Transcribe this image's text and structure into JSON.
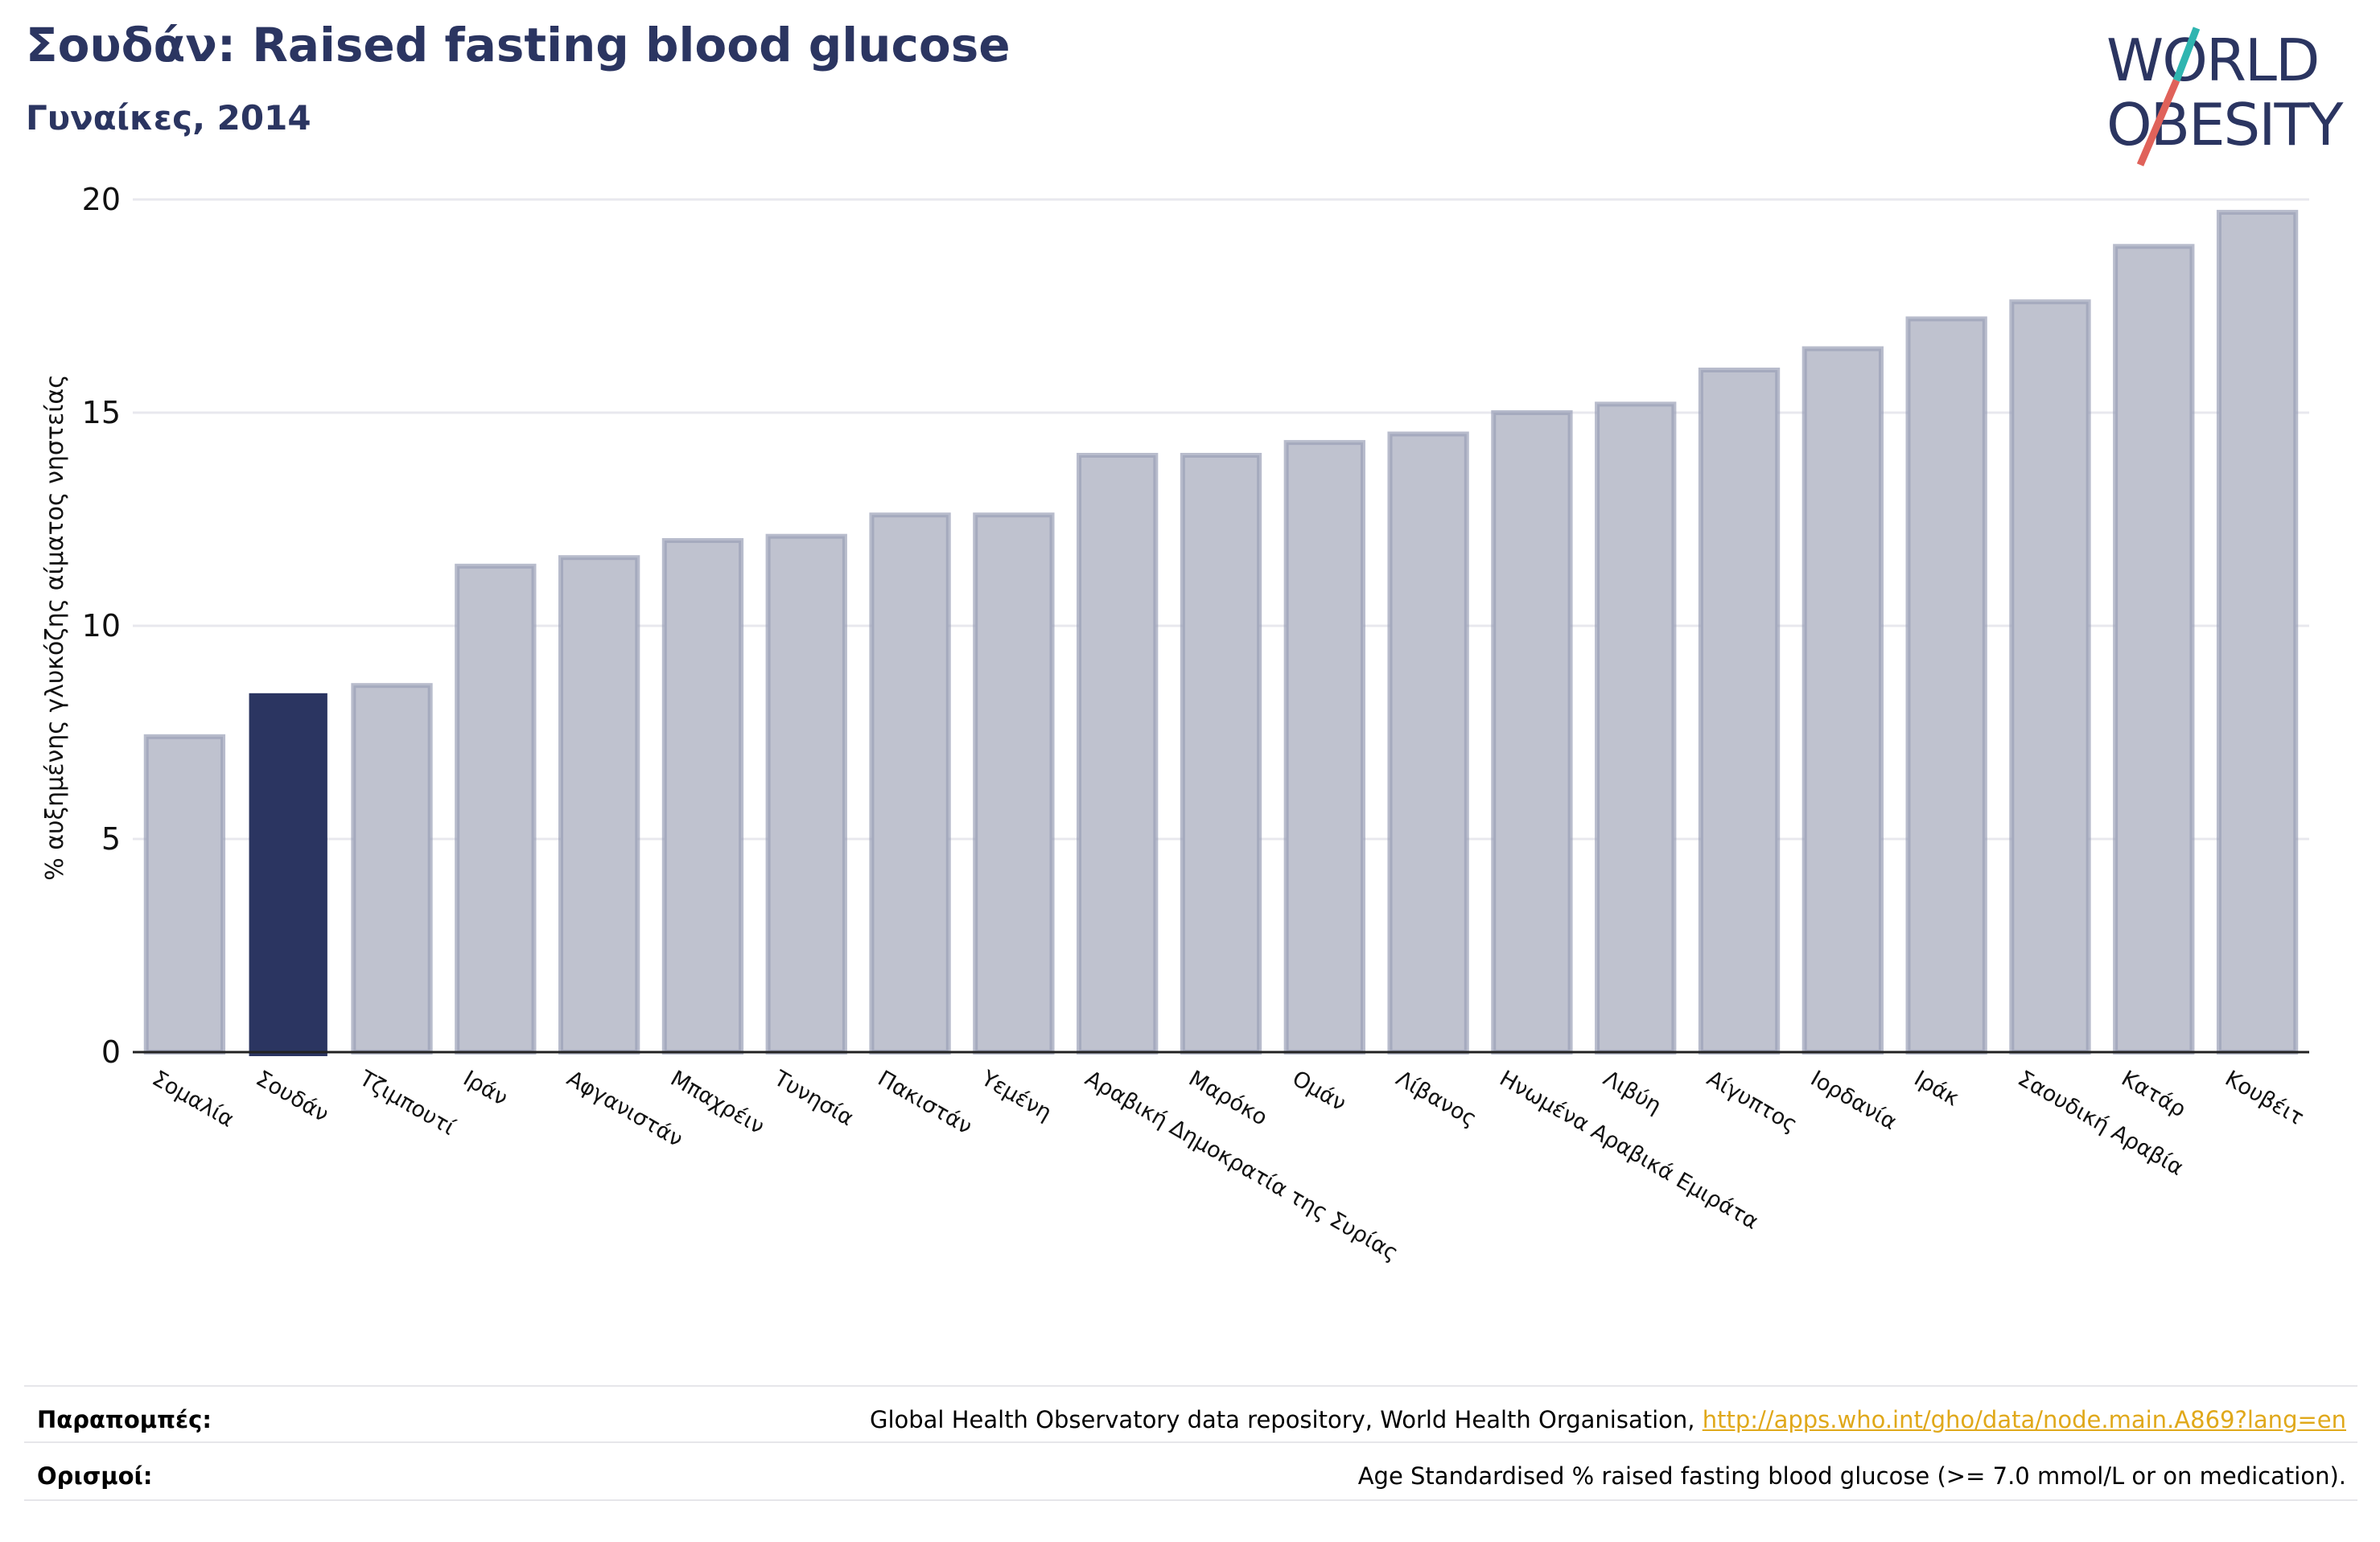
{
  "title": "Σουδάν: Raised fasting blood glucose",
  "subtitle": "Γυναίκες, 2014",
  "logo": {
    "line1": "WORLD",
    "line2": "OBESITY"
  },
  "colors": {
    "highlight": "#2b3561",
    "bar_fill": "#bfc2cf",
    "bar_stroke": "#9a9fb6",
    "accent_teal": "#2fb5b0",
    "accent_red": "#e0625a",
    "link": "#e0a81a"
  },
  "chart_data": {
    "type": "bar",
    "title": "Σουδάν: Raised fasting blood glucose",
    "subtitle": "Γυναίκες, 2014",
    "xlabel": "",
    "ylabel": "% αυξημένης γλυκόζης αίματος νηστείας",
    "ylim": [
      0,
      20
    ],
    "yticks": [
      0,
      5,
      10,
      15,
      20
    ],
    "grid": true,
    "highlight": "Σουδάν",
    "categories": [
      "Σομαλία",
      "Σουδάν",
      "Τζιμπουτί",
      "Ιράν",
      "Αφγανιστάν",
      "Μπαχρέιν",
      "Τυνησία",
      "Πακιστάν",
      "Υεμένη",
      "Αραβική Δημοκρατία της Συρίας",
      "Μαρόκο",
      "Ομάν",
      "Λίβανος",
      "Ηνωμένα Αραβικά Εμιράτα",
      "Λιβύη",
      "Αίγυπτος",
      "Ιορδανία",
      "Ιράκ",
      "Σαουδική Αραβία",
      "Κατάρ",
      "Κουβέιτ"
    ],
    "values": [
      7.4,
      8.4,
      8.6,
      11.4,
      11.6,
      12.0,
      12.1,
      12.6,
      12.6,
      14.0,
      14.0,
      14.3,
      14.5,
      15.0,
      15.2,
      16.0,
      16.5,
      17.2,
      17.6,
      18.9,
      19.7
    ]
  },
  "footer": {
    "references_label": "Παραπομπές:",
    "references_text": "Global Health Observatory data repository, World Health Organisation,",
    "references_link": "http://apps.who.int/gho/data/node.main.A869?lang=en",
    "definitions_label": "Ορισμοί:",
    "definitions_text": "Age Standardised % raised fasting blood glucose (>= 7.0 mmol/L or on medication)."
  }
}
